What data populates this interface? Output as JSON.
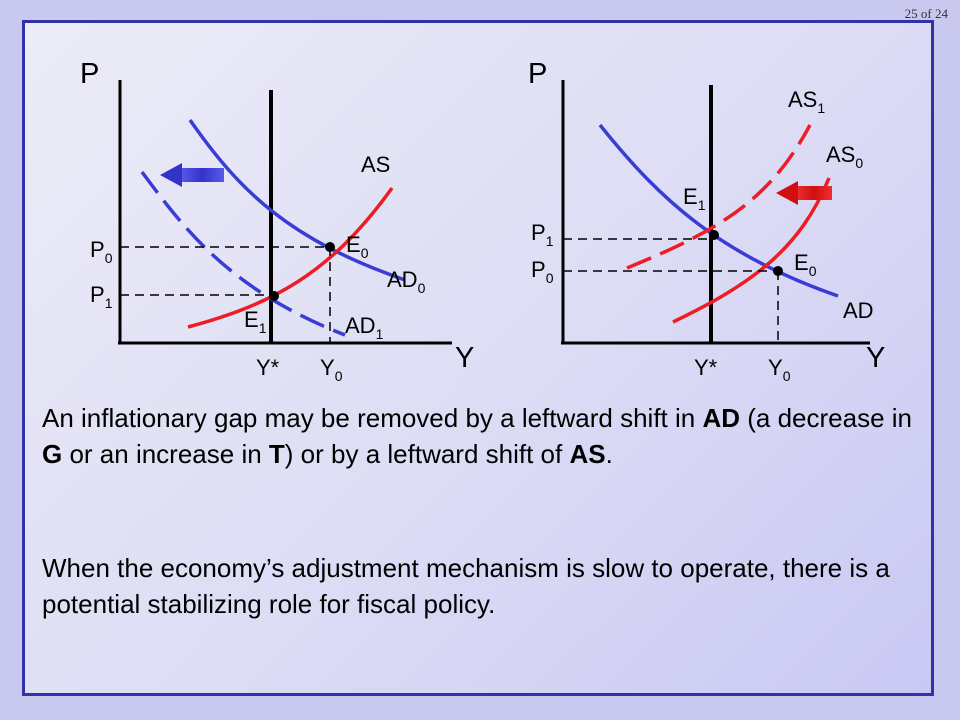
{
  "page_number": "25 of 24",
  "colors": {
    "curve_blue": "#3b3bd6",
    "curve_red": "#ee1c24",
    "axis": "#000000"
  },
  "left_graph": {
    "axis_p": "P",
    "axis_y": "Y",
    "as": "AS",
    "ad0": {
      "base": "AD",
      "sub": "0"
    },
    "ad1": {
      "base": "AD",
      "sub": "1"
    },
    "e0": {
      "base": "E",
      "sub": "0"
    },
    "e1": {
      "base": "E",
      "sub": "1"
    },
    "p0": {
      "base": "P",
      "sub": "0"
    },
    "p1": {
      "base": "P",
      "sub": "1"
    },
    "ystar": "Y*",
    "y0": {
      "base": "Y",
      "sub": "0"
    }
  },
  "right_graph": {
    "axis_p": "P",
    "axis_y": "Y",
    "as1": {
      "base": "AS",
      "sub": "1"
    },
    "as0": {
      "base": "AS",
      "sub": "0"
    },
    "ad": "AD",
    "e0": {
      "base": "E",
      "sub": "0"
    },
    "e1": {
      "base": "E",
      "sub": "1"
    },
    "p0": {
      "base": "P",
      "sub": "0"
    },
    "p1": {
      "base": "P",
      "sub": "1"
    },
    "ystar": "Y*",
    "y0": {
      "base": "Y",
      "sub": "0"
    }
  },
  "paragraph1": {
    "t1": "An inflationary gap may be removed by a leftward shift in ",
    "b1": "AD",
    "t2": " (a decrease in ",
    "b2": "G",
    "t3": " or an increase in ",
    "b3": "T",
    "t4": ") or by a leftward shift of ",
    "b4": "AS",
    "t5": "."
  },
  "paragraph2": "When the economy’s adjustment mechanism is slow to operate, there is a potential stabilizing role for fiscal policy."
}
